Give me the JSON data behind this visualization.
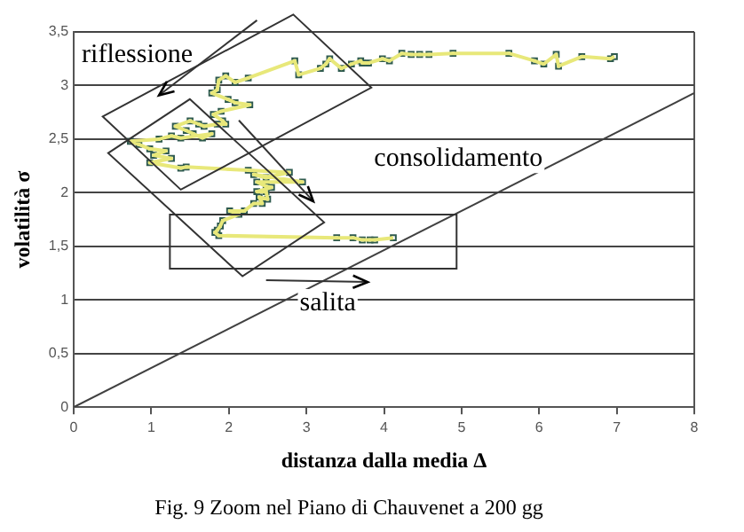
{
  "chart_data": {
    "type": "scatter",
    "title": "Fig. 9 Zoom nel Piano di Chauvenet a 200 gg",
    "xlabel": "distanza dalla media Δ",
    "ylabel": "volatilità σ",
    "xlim": [
      0,
      8
    ],
    "xticks": [
      0,
      1,
      2,
      3,
      4,
      5,
      6,
      7,
      8
    ],
    "ylim": [
      0,
      3.5
    ],
    "yticks": [
      0,
      {
        "value": 0.5,
        "label": "0,5"
      },
      1,
      {
        "value": 1.5,
        "label": "1,5"
      },
      2,
      {
        "value": 2.5,
        "label": "2,5"
      },
      3,
      {
        "value": 3.5,
        "label": "3,5"
      }
    ],
    "grid": "y",
    "legend": false,
    "annotations": [
      "riflessione",
      "consolidamento",
      "salita"
    ],
    "series": [
      {
        "type": "line",
        "color": "#e8e87a",
        "marker": "none",
        "line_style": "solid",
        "x": [
          6.97,
          6.92,
          6.55,
          6.25,
          6.22,
          6.06,
          5.94,
          5.61,
          4.89,
          4.58,
          4.46,
          4.35,
          4.23,
          4.07,
          3.98,
          3.8,
          3.72,
          3.7,
          3.58,
          3.45,
          3.3,
          3.25,
          3.18,
          2.9,
          2.85,
          2.25,
          2.08,
          1.96,
          1.87,
          1.85,
          1.78,
          1.99,
          2.08,
          2.27,
          1.9,
          1.8,
          1.92,
          1.96,
          1.85,
          1.68,
          1.61,
          1.5,
          1.31,
          1.45,
          1.54,
          1.66,
          1.78,
          1.38,
          1.26,
          1.1,
          0.73,
          0.84,
          0.98,
          1.19,
          1.03,
          1.26,
          0.98,
          1.38,
          1.45,
          2.25,
          2.78,
          2.48,
          2.32,
          2.95,
          2.36,
          2.48,
          2.55,
          2.36,
          2.48,
          2.5,
          2.39,
          2.43,
          2.32,
          2.2,
          2.01,
          2.13,
          1.92,
          1.89,
          1.85,
          1.82,
          1.87,
          3.39,
          3.6,
          3.72,
          3.82,
          3.88,
          4.12
        ],
        "values": [
          3.27,
          3.25,
          3.27,
          3.18,
          3.29,
          3.2,
          3.23,
          3.3,
          3.3,
          3.29,
          3.29,
          3.29,
          3.3,
          3.23,
          3.25,
          3.21,
          3.21,
          3.23,
          3.2,
          3.16,
          3.25,
          3.2,
          3.16,
          3.1,
          3.23,
          3.07,
          3.03,
          3.09,
          3.05,
          2.96,
          2.93,
          2.87,
          2.84,
          2.82,
          2.76,
          2.73,
          2.67,
          2.64,
          2.64,
          2.62,
          2.64,
          2.67,
          2.62,
          2.58,
          2.55,
          2.51,
          2.55,
          2.51,
          2.53,
          2.5,
          2.48,
          2.45,
          2.41,
          2.39,
          2.35,
          2.32,
          2.28,
          2.23,
          2.24,
          2.21,
          2.19,
          2.14,
          2.17,
          2.1,
          2.1,
          2.06,
          2.05,
          2.01,
          2.01,
          1.94,
          1.96,
          1.9,
          1.9,
          1.83,
          1.83,
          1.8,
          1.74,
          1.69,
          1.65,
          1.63,
          1.6,
          1.58,
          1.58,
          1.56,
          1.56,
          1.56,
          1.58
        ]
      },
      {
        "type": "scatter",
        "color": "#2e5a4e",
        "marker": "square",
        "x": [
          6.97,
          6.92,
          6.55,
          6.25,
          6.22,
          6.06,
          5.94,
          5.61,
          4.89,
          4.58,
          4.46,
          4.35,
          4.23,
          4.07,
          3.98,
          3.8,
          3.72,
          3.7,
          3.58,
          3.45,
          3.3,
          3.25,
          3.18,
          2.9,
          2.85,
          2.25,
          2.08,
          1.96,
          1.87,
          1.85,
          1.78,
          1.99,
          2.08,
          2.27,
          1.9,
          1.8,
          1.92,
          1.96,
          1.85,
          1.68,
          1.61,
          1.5,
          1.31,
          1.45,
          1.54,
          1.66,
          1.78,
          1.38,
          1.26,
          1.1,
          0.73,
          0.84,
          0.98,
          1.19,
          1.03,
          1.26,
          0.98,
          1.38,
          1.45,
          2.25,
          2.78,
          2.48,
          2.32,
          2.95,
          2.36,
          2.48,
          2.55,
          2.36,
          2.48,
          2.5,
          2.39,
          2.43,
          2.32,
          2.2,
          2.01,
          2.13,
          1.92,
          1.89,
          1.85,
          1.82,
          1.87,
          3.39,
          3.6,
          3.72,
          3.82,
          3.88,
          4.12
        ],
        "values": [
          3.27,
          3.25,
          3.27,
          3.18,
          3.29,
          3.2,
          3.23,
          3.3,
          3.3,
          3.29,
          3.29,
          3.29,
          3.3,
          3.23,
          3.25,
          3.21,
          3.21,
          3.23,
          3.2,
          3.16,
          3.25,
          3.2,
          3.16,
          3.1,
          3.23,
          3.07,
          3.03,
          3.09,
          3.05,
          2.96,
          2.93,
          2.87,
          2.84,
          2.82,
          2.76,
          2.73,
          2.67,
          2.64,
          2.64,
          2.62,
          2.64,
          2.67,
          2.62,
          2.58,
          2.55,
          2.51,
          2.55,
          2.51,
          2.53,
          2.5,
          2.48,
          2.45,
          2.41,
          2.39,
          2.35,
          2.32,
          2.28,
          2.23,
          2.24,
          2.21,
          2.19,
          2.14,
          2.17,
          2.1,
          2.1,
          2.06,
          2.05,
          2.01,
          2.01,
          1.94,
          1.96,
          1.9,
          1.9,
          1.83,
          1.83,
          1.8,
          1.74,
          1.69,
          1.65,
          1.63,
          1.6,
          1.58,
          1.58,
          1.56,
          1.56,
          1.56,
          1.58
        ]
      },
      {
        "type": "line",
        "color": "#404040",
        "marker": "none",
        "line_style": "solid",
        "x": [
          0,
          8
        ],
        "values": [
          0,
          2.93
        ]
      }
    ]
  }
}
